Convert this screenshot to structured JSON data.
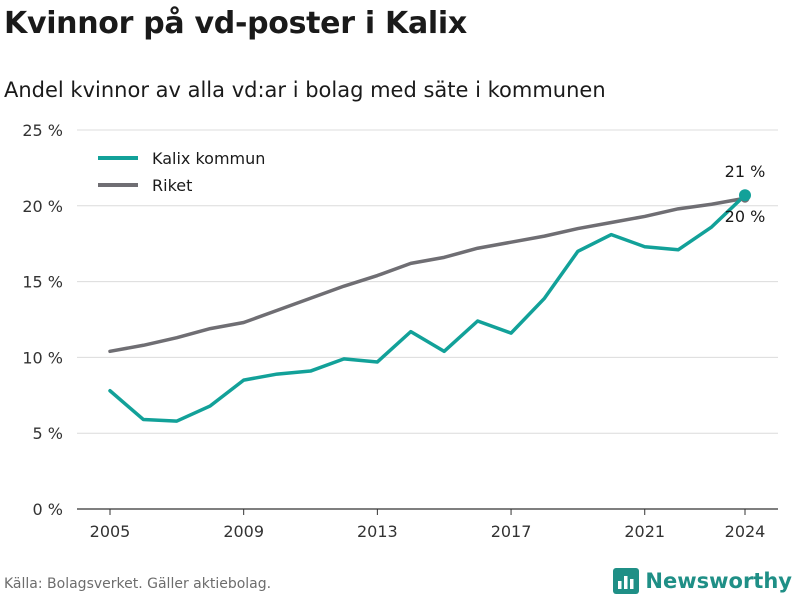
{
  "title": "Kvinnor på vd-poster i Kalix",
  "subtitle": "Andel kvinnor av alla vd:ar i bolag med säte i kommunen",
  "source": "Källa: Bolagsverket. Gäller aktiebolag.",
  "brand": "Newsworthy",
  "brand_icon": "newsworthy-logo-icon",
  "chart_data": {
    "type": "line",
    "x": [
      2005,
      2006,
      2007,
      2008,
      2009,
      2010,
      2011,
      2012,
      2013,
      2014,
      2015,
      2016,
      2017,
      2018,
      2019,
      2020,
      2021,
      2022,
      2023,
      2024
    ],
    "series": [
      {
        "name": "Kalix kommun",
        "color": "#12a199",
        "values": [
          7.8,
          5.9,
          5.8,
          6.8,
          8.5,
          8.9,
          9.1,
          9.9,
          9.7,
          11.7,
          10.4,
          12.4,
          11.6,
          13.9,
          17.0,
          18.1,
          17.3,
          17.1,
          18.6,
          20.7
        ],
        "end_label": "21 %"
      },
      {
        "name": "Riket",
        "color": "#6f6e73",
        "values": [
          10.4,
          10.8,
          11.3,
          11.9,
          12.3,
          13.1,
          13.9,
          14.7,
          15.4,
          16.2,
          16.6,
          17.2,
          17.6,
          18.0,
          18.5,
          18.9,
          19.3,
          19.8,
          20.1,
          20.5
        ],
        "end_label": "20 %"
      }
    ],
    "x_ticks": [
      2005,
      2009,
      2013,
      2017,
      2021,
      2024
    ],
    "y_ticks": [
      0,
      5,
      10,
      15,
      20,
      25
    ],
    "y_tick_labels": [
      "0 %",
      "5 %",
      "10 %",
      "15 %",
      "20 %",
      "25 %"
    ],
    "ylim": [
      0,
      25
    ],
    "xlim": [
      2005,
      2024
    ],
    "grid": true,
    "legend": "top-left"
  }
}
